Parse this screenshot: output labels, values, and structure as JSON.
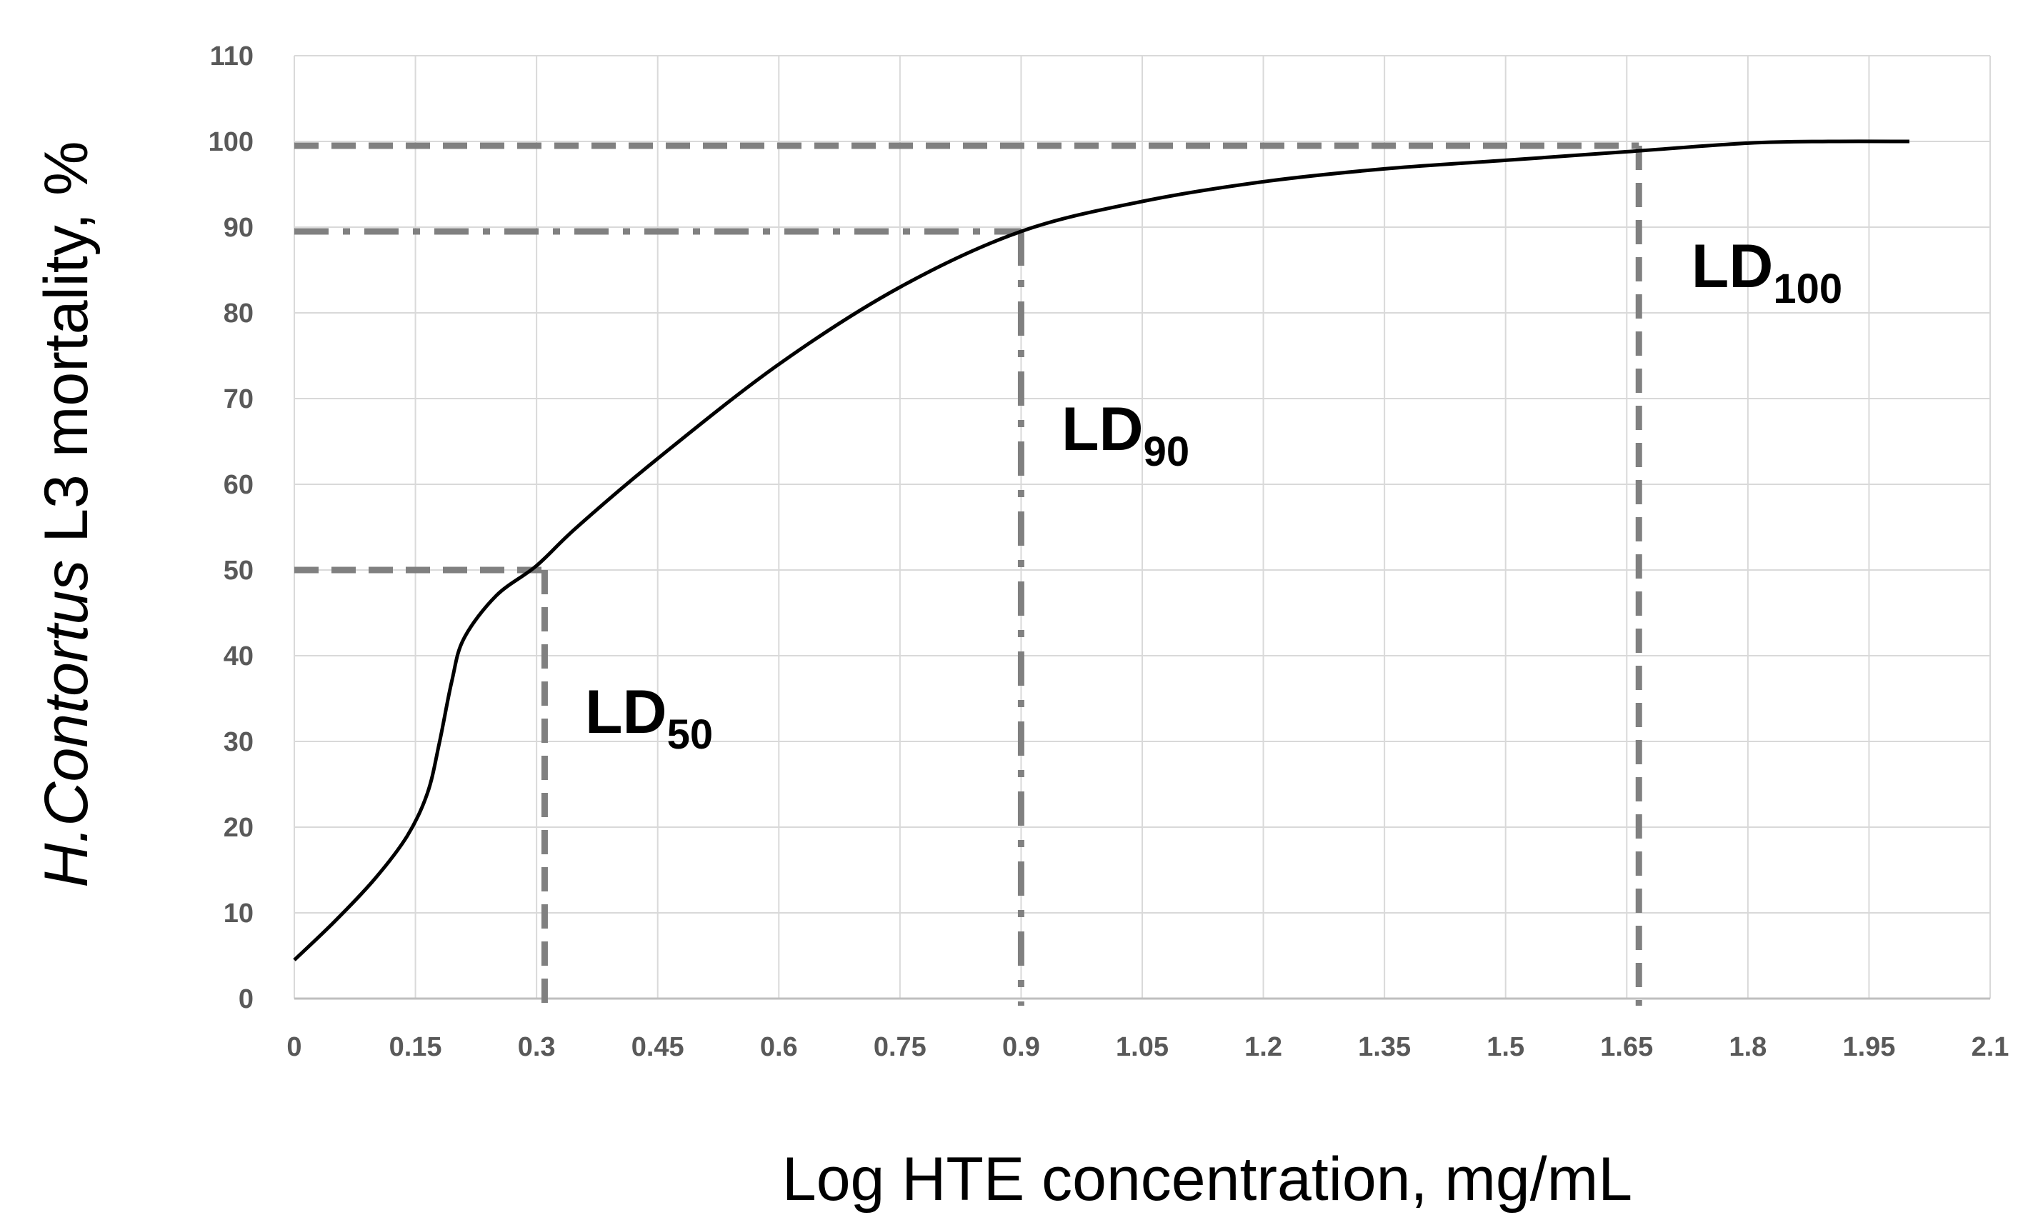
{
  "chart_data": {
    "type": "line",
    "xlabel": "Log HTE concentration, mg/mL",
    "ylabel": {
      "italic_part": "H.Contortus",
      "rest": " L3 mortality, %"
    },
    "xlim": [
      0,
      2.1
    ],
    "ylim": [
      0,
      110
    ],
    "x_ticks": [
      "0",
      "0.15",
      "0.3",
      "0.45",
      "0.6",
      "0.75",
      "0.9",
      "1.05",
      "1.2",
      "1.35",
      "1.5",
      "1.65",
      "1.8",
      "1.95",
      "2.1"
    ],
    "y_ticks": [
      "0",
      "10",
      "20",
      "30",
      "40",
      "50",
      "60",
      "70",
      "80",
      "90",
      "100",
      "110"
    ],
    "grid": true,
    "series": [
      {
        "color": "#000000",
        "x": [
          0,
          0.05,
          0.1,
          0.14,
          0.165,
          0.18,
          0.195,
          0.21,
          0.25,
          0.3,
          0.35,
          0.45,
          0.6,
          0.75,
          0.9,
          1.05,
          1.2,
          1.35,
          1.5,
          1.65,
          1.8,
          1.9,
          2.0
        ],
        "y": [
          4.5,
          9,
          14,
          19,
          24,
          30,
          37,
          42,
          47,
          50.5,
          55,
          63,
          74,
          83,
          89.5,
          93,
          95.3,
          96.8,
          97.8,
          98.8,
          99.8,
          100,
          100
        ]
      }
    ],
    "reference_lines": [
      {
        "name": "LD50",
        "x": 0.31,
        "y": 50,
        "style": "dash",
        "color": "#808080"
      },
      {
        "name": "LD90",
        "x": 0.9,
        "y": 89.5,
        "style": "dashdot",
        "color": "#808080"
      },
      {
        "name": "LD100",
        "x": 1.665,
        "y": 99.5,
        "style": "dash",
        "color": "#808080"
      }
    ],
    "annotations": [
      {
        "main": "LD",
        "sub": "50",
        "x": 0.36,
        "y": 31
      },
      {
        "main": "LD",
        "sub": "90",
        "x": 0.95,
        "y": 64
      },
      {
        "main": "LD",
        "sub": "100",
        "x": 1.73,
        "y": 83
      }
    ]
  }
}
